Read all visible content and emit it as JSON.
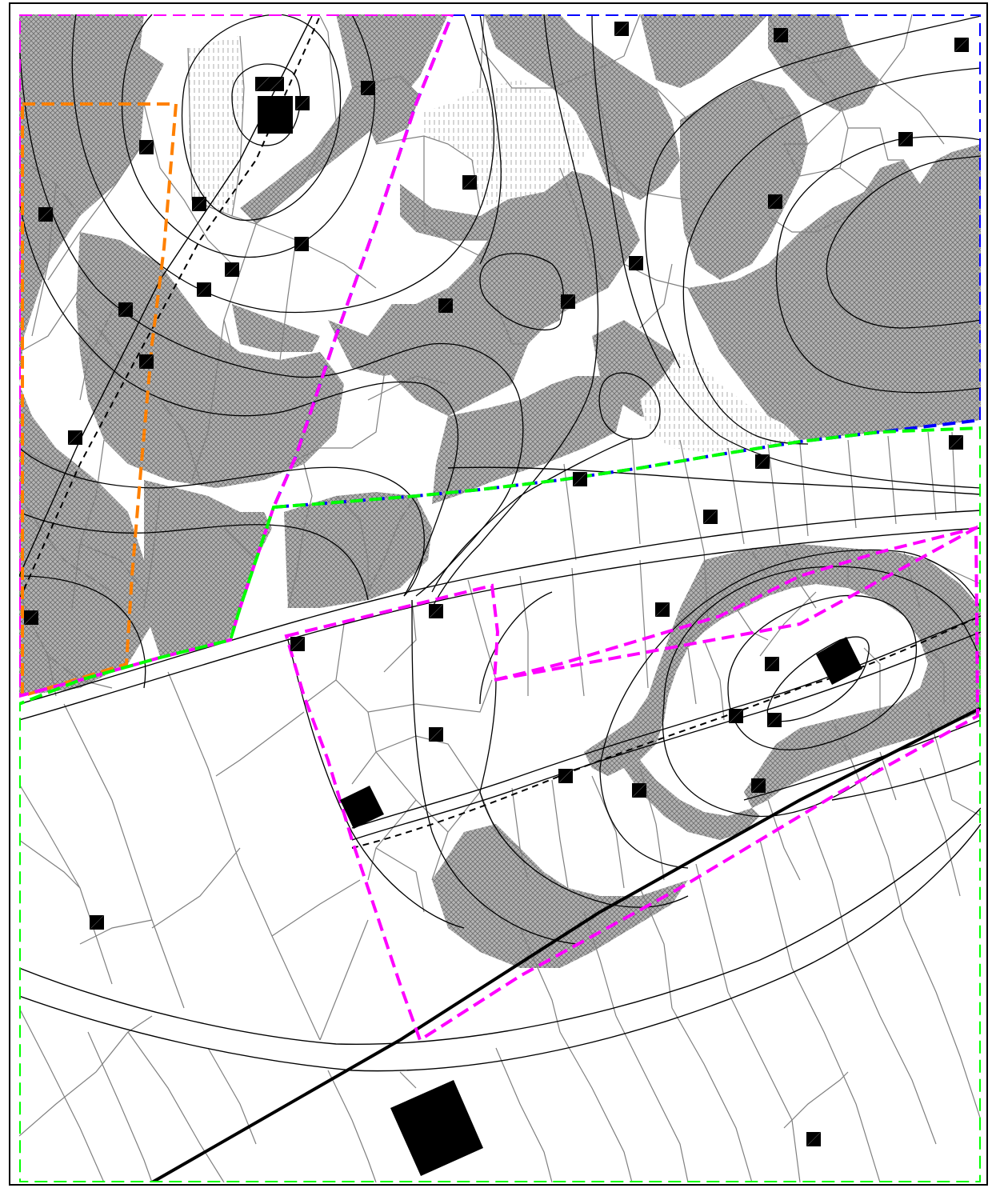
{
  "map": {
    "colors": {
      "background": "#ffffff",
      "frame": "#000000",
      "hatch_fill": "#a8a8a8",
      "hatch_line": "#6e6e6e",
      "vertical_hatch": "#9a9a9a",
      "parcel_line": "#808080",
      "contour_line": "#000000",
      "road_line": "#000000",
      "building": "#000000",
      "zone_magenta": "#ff00ff",
      "zone_blue": "#0000ff",
      "zone_green": "#00ff00",
      "zone_orange": "#ff8000",
      "track_dashed": "#000000"
    },
    "layers": [
      "wooded-area-hatch",
      "vertical-hatch-area",
      "parcel-lines",
      "contour-lines",
      "roads",
      "buildings",
      "zone-boundaries"
    ],
    "zones": [
      {
        "name": "zone-magenta",
        "style": "dashed",
        "color": "#ff00ff"
      },
      {
        "name": "zone-blue",
        "style": "dashed",
        "color": "#0000ff"
      },
      {
        "name": "zone-green",
        "style": "dashed",
        "color": "#00ff00"
      },
      {
        "name": "zone-orange",
        "style": "dashed",
        "color": "#ff8000"
      }
    ]
  }
}
